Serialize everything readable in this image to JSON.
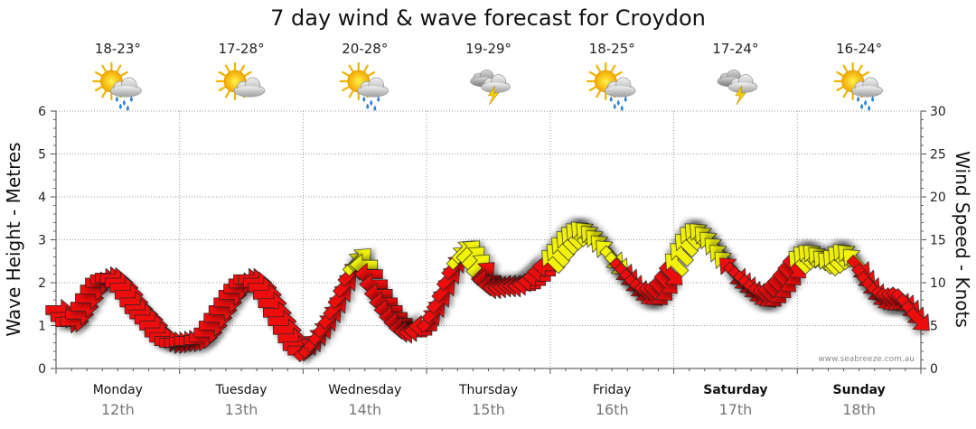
{
  "chart_data": {
    "type": "line",
    "title": "7 day wind & wave forecast for Croydon",
    "y_left": {
      "label": "Wave Height - Metres",
      "min": 0,
      "max": 6,
      "ticks": [
        "0",
        "1",
        "2",
        "3",
        "4",
        "5",
        "6"
      ]
    },
    "y_right": {
      "label": "Wind Speed - Knots",
      "min": 0,
      "max": 30,
      "ticks": [
        "0",
        "5",
        "10",
        "15",
        "20",
        "25",
        "30"
      ]
    },
    "days": [
      {
        "name": "Monday",
        "date": "12th",
        "temp": "18-23°",
        "weather": "sun-cloud-rain",
        "bold": false
      },
      {
        "name": "Tuesday",
        "date": "13th",
        "temp": "17-28°",
        "weather": "sun-cloud",
        "bold": false
      },
      {
        "name": "Wednesday",
        "date": "14th",
        "temp": "20-28°",
        "weather": "sun-cloud-rain",
        "bold": false
      },
      {
        "name": "Thursday",
        "date": "15th",
        "temp": "19-29°",
        "weather": "cloud-lightning",
        "bold": false
      },
      {
        "name": "Friday",
        "date": "16th",
        "temp": "18-25°",
        "weather": "sun-cloud-rain",
        "bold": false
      },
      {
        "name": "Saturday",
        "date": "17th",
        "temp": "17-24°",
        "weather": "cloud-lightning",
        "bold": true
      },
      {
        "name": "Sunday",
        "date": "18th",
        "temp": "16-24°",
        "weather": "sun-cloud-rain",
        "bold": true
      }
    ],
    "wind_series": {
      "name": "Wind speed (knots) with direction arrows",
      "times": [
        0.02,
        0.06,
        0.1,
        0.14,
        0.18,
        0.22,
        0.26,
        0.3,
        0.34,
        0.38,
        0.42,
        0.46,
        0.5,
        0.54,
        0.58,
        0.62,
        0.66,
        0.7,
        0.74,
        0.78,
        0.82,
        0.86,
        0.9,
        0.94,
        0.98,
        1.02,
        1.06,
        1.1,
        1.14,
        1.18,
        1.22,
        1.26,
        1.3,
        1.34,
        1.38,
        1.42,
        1.46,
        1.5,
        1.54,
        1.58,
        1.62,
        1.66,
        1.7,
        1.74,
        1.78,
        1.82,
        1.86,
        1.9,
        1.94,
        1.98,
        2.02,
        2.06,
        2.1,
        2.14,
        2.18,
        2.22,
        2.26,
        2.3,
        2.34,
        2.38,
        2.42,
        2.46,
        2.5,
        2.54,
        2.58,
        2.62,
        2.66,
        2.7,
        2.74,
        2.78,
        2.82,
        2.86,
        2.9,
        2.94,
        2.98,
        3.02,
        3.06,
        3.1,
        3.14,
        3.18,
        3.22,
        3.26,
        3.3,
        3.34,
        3.38,
        3.42,
        3.46,
        3.5,
        3.54,
        3.58,
        3.62,
        3.66,
        3.7,
        3.74,
        3.78,
        3.82,
        3.86,
        3.9,
        3.94,
        3.98,
        4.02,
        4.06,
        4.1,
        4.14,
        4.18,
        4.22,
        4.26,
        4.3,
        4.34,
        4.38,
        4.42,
        4.46,
        4.5,
        4.54,
        4.58,
        4.62,
        4.66,
        4.7,
        4.74,
        4.78,
        4.82,
        4.86,
        4.9,
        4.94,
        4.98,
        5.02,
        5.06,
        5.1,
        5.14,
        5.18,
        5.22,
        5.26,
        5.3,
        5.34,
        5.38,
        5.42,
        5.46,
        5.5,
        5.54,
        5.58,
        5.62,
        5.66,
        5.7,
        5.74,
        5.78,
        5.82,
        5.86,
        5.9,
        5.94,
        5.98,
        6.02,
        6.06,
        6.1,
        6.14,
        6.18,
        6.22,
        6.26,
        6.3,
        6.34,
        6.38,
        6.42,
        6.46,
        6.5,
        6.54,
        6.58,
        6.62,
        6.66,
        6.7,
        6.74,
        6.78,
        6.82,
        6.86,
        6.9,
        6.94,
        6.98
      ],
      "knots": [
        6.8,
        6.0,
        5.4,
        5.5,
        6.3,
        7.2,
        8.2,
        9.2,
        10.0,
        10.4,
        10.6,
        10.5,
        10.0,
        9.4,
        8.6,
        7.7,
        6.9,
        6.3,
        5.7,
        5.0,
        4.2,
        3.6,
        3.2,
        3.0,
        3.0,
        3.1,
        3.2,
        3.2,
        3.3,
        3.6,
        4.2,
        5.0,
        5.9,
        6.8,
        7.7,
        8.6,
        9.3,
        9.9,
        10.4,
        10.4,
        10.0,
        9.4,
        8.6,
        7.6,
        6.5,
        5.5,
        4.5,
        3.5,
        2.6,
        2.1,
        2.2,
        2.6,
        3.3,
        4.1,
        5.0,
        6.0,
        7.1,
        8.4,
        9.7,
        11.0,
        12.2,
        12.7,
        12.1,
        11.0,
        9.8,
        8.7,
        7.7,
        6.8,
        6.0,
        5.3,
        4.7,
        4.3,
        4.2,
        4.4,
        4.9,
        5.6,
        6.6,
        7.8,
        9.1,
        10.5,
        11.8,
        12.9,
        13.6,
        13.6,
        12.9,
        12.0,
        11.1,
        10.3,
        9.7,
        9.4,
        9.4,
        9.5,
        9.6,
        9.6,
        9.6,
        9.8,
        10.2,
        10.7,
        11.3,
        11.9,
        12.5,
        13.2,
        14.0,
        14.7,
        15.2,
        15.6,
        15.8,
        15.7,
        15.3,
        14.8,
        14.2,
        13.6,
        12.9,
        12.2,
        11.5,
        10.9,
        10.2,
        9.6,
        9.1,
        8.7,
        8.6,
        8.7,
        9.2,
        10.0,
        11.0,
        12.1,
        13.3,
        14.4,
        15.2,
        15.6,
        15.6,
        15.2,
        14.6,
        13.9,
        13.1,
        12.3,
        11.6,
        11.0,
        10.5,
        10.0,
        9.5,
        9.0,
        8.6,
        8.4,
        8.5,
        8.9,
        9.5,
        10.2,
        11.0,
        11.8,
        12.4,
        12.9,
        13.1,
        13.1,
        12.8,
        12.4,
        12.2,
        12.5,
        12.9,
        13.2,
        13.1,
        12.6,
        11.8,
        10.8,
        9.9,
        9.2,
        8.6,
        8.2,
        8.0,
        8.0,
        8.1,
        7.9,
        7.3,
        6.5,
        5.7
      ],
      "direction_deg": [
        90,
        90,
        90,
        90,
        90,
        90,
        90,
        90,
        90,
        90,
        90,
        90,
        90,
        90,
        90,
        90,
        90,
        90,
        90,
        90,
        90,
        90,
        90,
        90,
        90,
        90,
        90,
        90,
        90,
        90,
        90,
        90,
        90,
        90,
        90,
        90,
        90,
        90,
        90,
        90,
        90,
        90,
        90,
        90,
        90,
        90,
        90,
        90,
        90,
        90,
        45,
        45,
        45,
        45,
        45,
        45,
        45,
        45,
        45,
        45,
        45,
        45,
        270,
        270,
        270,
        270,
        270,
        270,
        270,
        270,
        270,
        270,
        270,
        270,
        270,
        45,
        45,
        45,
        45,
        45,
        45,
        45,
        45,
        45,
        45,
        45,
        45,
        270,
        270,
        270,
        270,
        270,
        270,
        270,
        270,
        270,
        270,
        270,
        270,
        270,
        315,
        315,
        315,
        315,
        315,
        315,
        315,
        315,
        315,
        315,
        315,
        315,
        135,
        135,
        135,
        135,
        135,
        135,
        135,
        135,
        135,
        135,
        135,
        135,
        135,
        315,
        315,
        315,
        315,
        315,
        315,
        315,
        315,
        315,
        315,
        315,
        315,
        135,
        135,
        135,
        135,
        135,
        135,
        135,
        135,
        135,
        135,
        135,
        135,
        135,
        315,
        315,
        315,
        315,
        315,
        315,
        315,
        315,
        315,
        315,
        315,
        315,
        135,
        135,
        135,
        135,
        135,
        135,
        135,
        135,
        135,
        135,
        135,
        135,
        135
      ],
      "color_rule": "red below 12 knots, yellow 12+ knots"
    },
    "colors": {
      "low_wind": "#ee1111",
      "high_wind": "#f2f20a",
      "grid": "#9a9a9a"
    },
    "credit": "www.seabreeze.com.au"
  }
}
